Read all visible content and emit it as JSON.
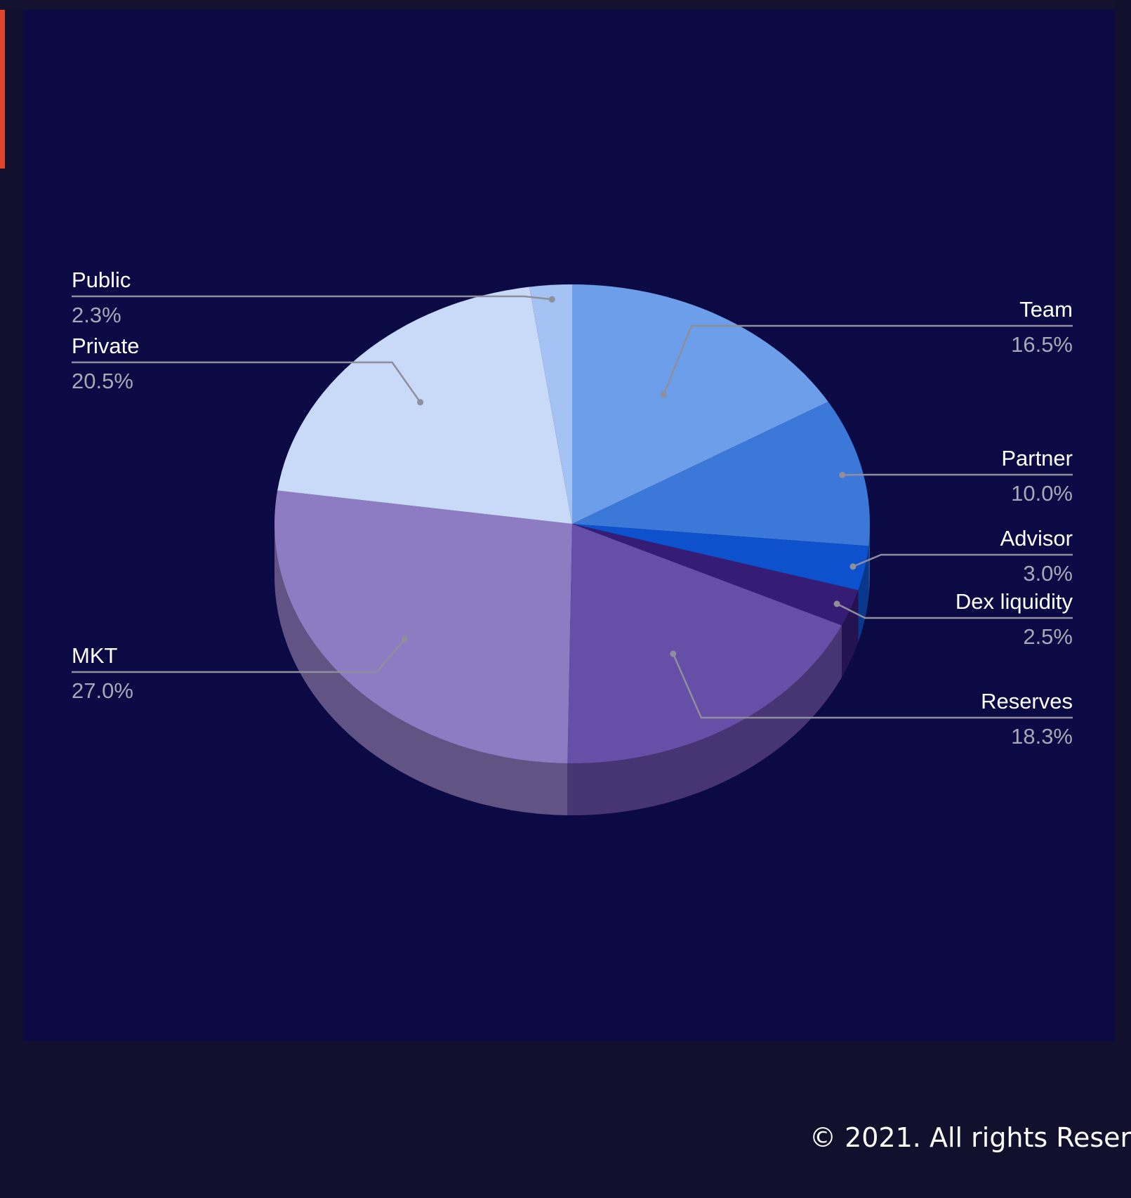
{
  "colors": {
    "page_bg": "#13102e",
    "panel_bg": "#0b0a45",
    "accent": "#e0462b",
    "label_name": "#ffffff",
    "label_value": "#a7a7b5",
    "leader_line": "#8e8e9c"
  },
  "chart_data": {
    "type": "pie",
    "style": "3d",
    "categories": [
      "Team",
      "Partner",
      "Advisor",
      "Dex liquidity",
      "Reserves",
      "MKT",
      "Private",
      "Public"
    ],
    "values": [
      16.5,
      10.0,
      3.0,
      2.5,
      18.3,
      27.0,
      20.5,
      2.3
    ],
    "labels": [
      "16.5%",
      "10.0%",
      "3.0%",
      "2.5%",
      "18.3%",
      "27.0%",
      "20.5%",
      "2.3%"
    ],
    "colors": [
      "#6d9eea",
      "#3c78d8",
      "#0d52cc",
      "#351c75",
      "#674ea7",
      "#8e7cc3",
      "#c9daf8",
      "#a4c2f4"
    ],
    "legend": "outside labels with leader lines"
  },
  "footer": {
    "copyright": "© 2021. All rights Reser"
  }
}
